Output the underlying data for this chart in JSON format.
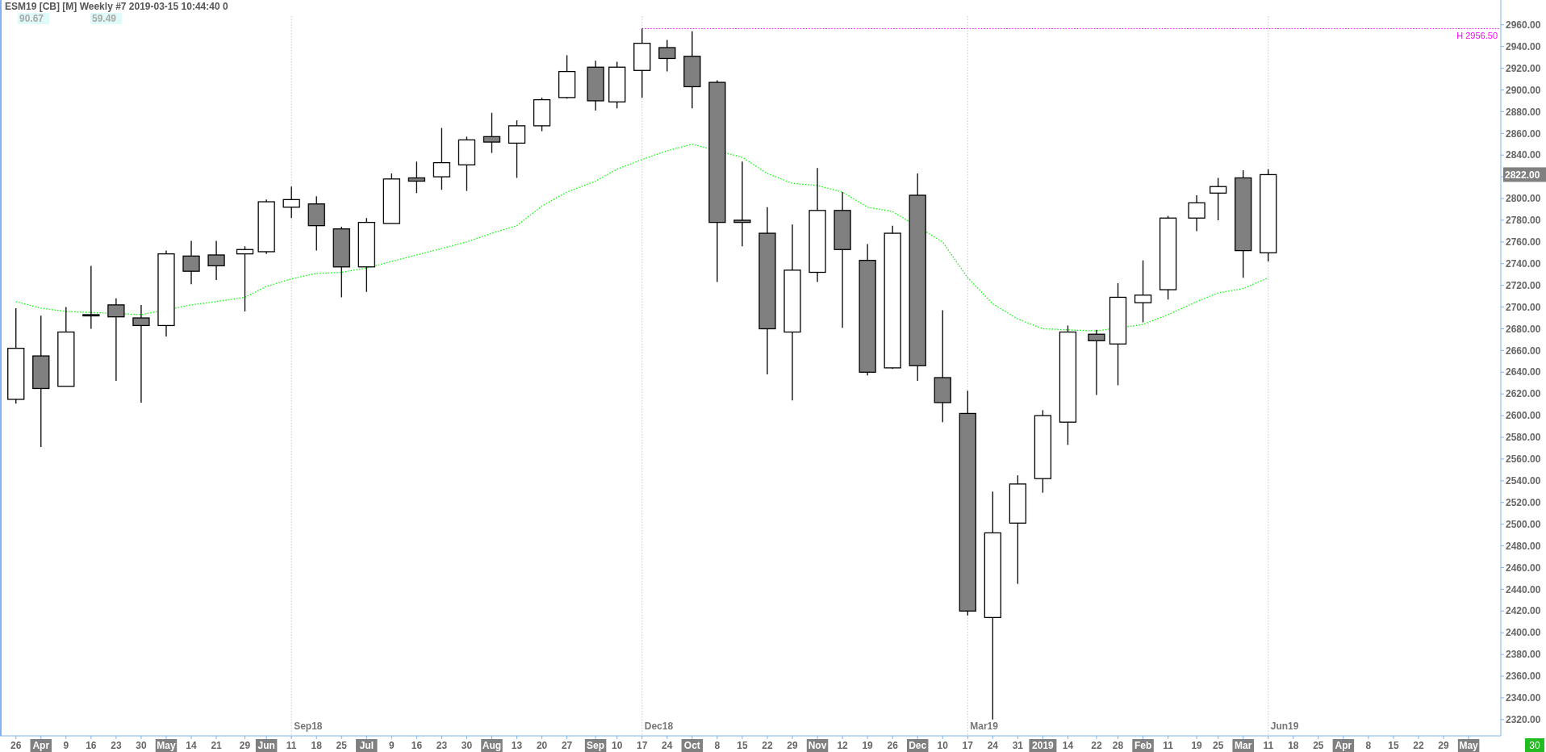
{
  "chart_data": {
    "type": "candlestick",
    "title": "ESM19 [CB] [M]  Weekly  #7 2019-03-15 10:44:40 0",
    "annotations": [
      "90.67",
      "59.49",
      "2822.00",
      "30"
    ],
    "x": [
      "2018-03-26",
      "2018-04-02",
      "2018-04-09",
      "2018-04-16",
      "2018-04-23",
      "2018-04-30",
      "2018-05-07",
      "2018-05-14",
      "2018-05-21",
      "2018-05-29",
      "2018-06-04",
      "2018-06-11",
      "2018-06-18",
      "2018-06-25",
      "2018-07-02",
      "2018-07-09",
      "2018-07-16",
      "2018-07-23",
      "2018-07-30",
      "2018-08-06",
      "2018-08-13",
      "2018-08-20",
      "2018-08-27",
      "2018-09-04",
      "2018-09-10",
      "2018-09-17",
      "2018-09-24",
      "2018-10-01",
      "2018-10-08",
      "2018-10-15",
      "2018-10-22",
      "2018-10-29",
      "2018-11-05",
      "2018-11-12",
      "2018-11-19",
      "2018-11-26",
      "2018-12-03",
      "2018-12-10",
      "2018-12-17",
      "2018-12-24",
      "2018-12-31",
      "2019-01-07",
      "2019-01-14",
      "2019-01-22",
      "2019-01-28",
      "2019-02-04",
      "2019-02-11",
      "2019-02-19",
      "2019-02-25",
      "2019-03-04",
      "2019-03-11"
    ],
    "ohlc": [
      [
        2615,
        2699,
        2611,
        2662
      ],
      [
        2655,
        2692,
        2571,
        2625
      ],
      [
        2627,
        2700,
        2627,
        2677
      ],
      [
        2693,
        2738,
        2680,
        2692
      ],
      [
        2702,
        2708,
        2632,
        2691
      ],
      [
        2690,
        2702,
        2612,
        2683
      ],
      [
        2683,
        2752,
        2673,
        2749
      ],
      [
        2747,
        2761,
        2721,
        2733
      ],
      [
        2748,
        2761,
        2725,
        2738
      ],
      [
        2749,
        2756,
        2696,
        2753
      ],
      [
        2751,
        2799,
        2749,
        2797
      ],
      [
        2792,
        2811,
        2782,
        2799
      ],
      [
        2795,
        2802,
        2752,
        2775
      ],
      [
        2772,
        2774,
        2709,
        2737
      ],
      [
        2737,
        2782,
        2714,
        2778
      ],
      [
        2777,
        2823,
        2777,
        2818
      ],
      [
        2819,
        2834,
        2805,
        2816
      ],
      [
        2820,
        2865,
        2808,
        2833
      ],
      [
        2831,
        2857,
        2807,
        2854
      ],
      [
        2857,
        2879,
        2842,
        2852
      ],
      [
        2851,
        2872,
        2819,
        2867
      ],
      [
        2867,
        2893,
        2862,
        2891
      ],
      [
        2893,
        2932,
        2892,
        2917
      ],
      [
        2921,
        2927,
        2881,
        2890
      ],
      [
        2889,
        2926,
        2883,
        2921
      ],
      [
        2918,
        2956.5,
        2893,
        2943
      ],
      [
        2939,
        2946,
        2917,
        2929
      ],
      [
        2931,
        2954,
        2883,
        2903
      ],
      [
        2907,
        2909,
        2723,
        2778
      ],
      [
        2780,
        2834,
        2756,
        2778
      ],
      [
        2768,
        2792,
        2638,
        2680
      ],
      [
        2677,
        2776,
        2614,
        2734
      ],
      [
        2732,
        2828,
        2723,
        2789
      ],
      [
        2789,
        2806,
        2681,
        2753
      ],
      [
        2743,
        2758,
        2637,
        2640
      ],
      [
        2644,
        2775,
        2643,
        2768
      ],
      [
        2803,
        2823,
        2632,
        2646
      ],
      [
        2635,
        2697,
        2594,
        2612
      ],
      [
        2602,
        2623,
        2416,
        2420
      ],
      [
        2414,
        2530,
        2320,
        2492
      ],
      [
        2501,
        2545,
        2445,
        2537
      ],
      [
        2542,
        2605,
        2529,
        2600
      ],
      [
        2594,
        2683,
        2573,
        2677
      ],
      [
        2675,
        2679,
        2619,
        2669
      ],
      [
        2666,
        2722,
        2628,
        2709
      ],
      [
        2704,
        2743,
        2686,
        2711
      ],
      [
        2716,
        2784,
        2707,
        2782
      ],
      [
        2782,
        2803,
        2770,
        2796
      ],
      [
        2805,
        2819,
        2780,
        2811
      ],
      [
        2819,
        2826,
        2727,
        2752
      ],
      [
        2750,
        2827,
        2742,
        2822
      ]
    ],
    "colors": [
      "#ffffff",
      "#808080",
      "#ffffff",
      "#808080",
      "#808080",
      "#808080",
      "#ffffff",
      "#808080",
      "#808080",
      "#ffffff",
      "#ffffff",
      "#ffffff",
      "#808080",
      "#808080",
      "#ffffff",
      "#ffffff",
      "#808080",
      "#ffffff",
      "#ffffff",
      "#808080",
      "#ffffff",
      "#ffffff",
      "#ffffff",
      "#808080",
      "#ffffff",
      "#ffffff",
      "#808080",
      "#808080",
      "#808080",
      "#808080",
      "#808080",
      "#ffffff",
      "#ffffff",
      "#808080",
      "#808080",
      "#ffffff",
      "#808080",
      "#808080",
      "#808080",
      "#ffffff",
      "#ffffff",
      "#ffffff",
      "#ffffff",
      "#808080",
      "#ffffff",
      "#ffffff",
      "#ffffff",
      "#ffffff",
      "#ffffff",
      "#808080",
      "#ffffff"
    ],
    "series": [
      {
        "type": "line",
        "color": "#00ff00",
        "values": [
          2705,
          2699,
          2696,
          2695,
          null,
          2693,
          null,
          2702,
          2705,
          2709,
          2719,
          2726,
          2731,
          2732,
          2736,
          2742,
          2748,
          2754,
          2760,
          2768,
          2775,
          2793,
          2806,
          2816,
          2827,
          2836,
          2844,
          2850,
          null,
          2838,
          2823,
          2814,
          2812,
          2806,
          2792,
          2788,
          null,
          2760,
          2727,
          2703,
          2689,
          2680,
          2679,
          2678,
          null,
          2684,
          2693,
          2705,
          2713,
          2717,
          2727
        ]
      }
    ],
    "line_style": "dotted",
    "ref_lines": [
      {
        "axis": "y",
        "value": 2956.5,
        "label": "H 2956.50",
        "color": "#ff00ff",
        "line_style": "dotted"
      },
      {
        "axis": "x",
        "value": "2018-06-11",
        "label": "Sep18",
        "color": "#c8c8c8",
        "line_style": "dotted"
      },
      {
        "axis": "x",
        "value": "2018-09-17",
        "label": "Dec18",
        "color": "#c8c8c8",
        "line_style": "dotted"
      },
      {
        "axis": "x",
        "value": "2018-12-17",
        "label": "Mar19",
        "color": "#c8c8c8",
        "line_style": "dotted"
      },
      {
        "axis": "x",
        "value": "2019-03-11",
        "label": "Jun19",
        "color": "#c8c8c8",
        "line_style": "dotted"
      }
    ],
    "xlim": [
      "2018-03-22",
      "2019-05-15"
    ],
    "xticks": [
      {
        "value": "2018-03-26",
        "label": "26"
      },
      {
        "value": "2018-04-02",
        "label": "Apr"
      },
      {
        "value": "2018-04-09",
        "label": "9"
      },
      {
        "value": "2018-04-16",
        "label": "16"
      },
      {
        "value": "2018-04-23",
        "label": "23"
      },
      {
        "value": "2018-04-30",
        "label": "30"
      },
      {
        "value": "2018-05-07",
        "label": "May"
      },
      {
        "value": "2018-05-14",
        "label": "14"
      },
      {
        "value": "2018-05-21",
        "label": "21"
      },
      {
        "value": "2018-05-29",
        "label": "29"
      },
      {
        "value": "2018-06-04",
        "label": "Jun"
      },
      {
        "value": "2018-06-11",
        "label": "11"
      },
      {
        "value": "2018-06-18",
        "label": "18"
      },
      {
        "value": "2018-06-25",
        "label": "25"
      },
      {
        "value": "2018-07-02",
        "label": "Jul"
      },
      {
        "value": "2018-07-09",
        "label": "9"
      },
      {
        "value": "2018-07-16",
        "label": "16"
      },
      {
        "value": "2018-07-23",
        "label": "23"
      },
      {
        "value": "2018-07-30",
        "label": "30"
      },
      {
        "value": "2018-08-06",
        "label": "Aug"
      },
      {
        "value": "2018-08-13",
        "label": "13"
      },
      {
        "value": "2018-08-20",
        "label": "20"
      },
      {
        "value": "2018-08-27",
        "label": "27"
      },
      {
        "value": "2018-09-04",
        "label": "Sep"
      },
      {
        "value": "2018-09-10",
        "label": "10"
      },
      {
        "value": "2018-09-17",
        "label": "17"
      },
      {
        "value": "2018-09-24",
        "label": "24"
      },
      {
        "value": "2018-10-01",
        "label": "Oct"
      },
      {
        "value": "2018-10-08",
        "label": "8"
      },
      {
        "value": "2018-10-15",
        "label": "15"
      },
      {
        "value": "2018-10-22",
        "label": "22"
      },
      {
        "value": "2018-10-29",
        "label": "29"
      },
      {
        "value": "2018-11-05",
        "label": "Nov"
      },
      {
        "value": "2018-11-12",
        "label": "12"
      },
      {
        "value": "2018-11-19",
        "label": "19"
      },
      {
        "value": "2018-11-26",
        "label": "26"
      },
      {
        "value": "2018-12-03",
        "label": "Dec"
      },
      {
        "value": "2018-12-10",
        "label": "10"
      },
      {
        "value": "2018-12-17",
        "label": "17"
      },
      {
        "value": "2018-12-24",
        "label": "24"
      },
      {
        "value": "2018-12-31",
        "label": "31"
      },
      {
        "value": "2019-01-07",
        "label": "2019"
      },
      {
        "value": "2019-01-14",
        "label": "14"
      },
      {
        "value": "2019-01-22",
        "label": "22"
      },
      {
        "value": "2019-01-28",
        "label": "28"
      },
      {
        "value": "2019-02-04",
        "label": "Feb"
      },
      {
        "value": "2019-02-11",
        "label": "11"
      },
      {
        "value": "2019-02-19",
        "label": "19"
      },
      {
        "value": "2019-02-25",
        "label": "25"
      },
      {
        "value": "2019-03-04",
        "label": "Mar"
      },
      {
        "value": "2019-03-11",
        "label": "11"
      },
      {
        "value": "2019-03-18",
        "label": "18"
      },
      {
        "value": "2019-03-25",
        "label": "25"
      },
      {
        "value": "2019-04-01",
        "label": "Apr"
      },
      {
        "value": "2019-04-08",
        "label": "8"
      },
      {
        "value": "2019-04-15",
        "label": "15"
      },
      {
        "value": "2019-04-22",
        "label": "22"
      },
      {
        "value": "2019-04-29",
        "label": "29"
      },
      {
        "value": "2019-05-06",
        "label": "May"
      }
    ],
    "ylim": [
      2305,
      2968
    ],
    "yticks": [
      {
        "value": 2320,
        "label": "2320.00"
      },
      {
        "value": 2340,
        "label": "2340.00"
      },
      {
        "value": 2360,
        "label": "2360.00"
      },
      {
        "value": 2380,
        "label": "2380.00"
      },
      {
        "value": 2400,
        "label": "2400.00"
      },
      {
        "value": 2420,
        "label": "2420.00"
      },
      {
        "value": 2440,
        "label": "2440.00"
      },
      {
        "value": 2460,
        "label": "2460.00"
      },
      {
        "value": 2480,
        "label": "2480.00"
      },
      {
        "value": 2500,
        "label": "2500.00"
      },
      {
        "value": 2520,
        "label": "2520.00"
      },
      {
        "value": 2540,
        "label": "2540.00"
      },
      {
        "value": 2560,
        "label": "2560.00"
      },
      {
        "value": 2580,
        "label": "2580.00"
      },
      {
        "value": 2600,
        "label": "2600.00"
      },
      {
        "value": 2620,
        "label": "2620.00"
      },
      {
        "value": 2640,
        "label": "2640.00"
      },
      {
        "value": 2660,
        "label": "2660.00"
      },
      {
        "value": 2680,
        "label": "2680.00"
      },
      {
        "value": 2700,
        "label": "2700.00"
      },
      {
        "value": 2720,
        "label": "2720.00"
      },
      {
        "value": 2740,
        "label": "2740.00"
      },
      {
        "value": 2760,
        "label": "2760.00"
      },
      {
        "value": 2780,
        "label": "2780.00"
      },
      {
        "value": 2800,
        "label": "2800.00"
      },
      {
        "value": 2820,
        "label": null
      },
      {
        "value": 2840,
        "label": "2840.00"
      },
      {
        "value": 2860,
        "label": "2860.00"
      },
      {
        "value": 2880,
        "label": "2880.00"
      },
      {
        "value": 2900,
        "label": "2900.00"
      },
      {
        "value": 2920,
        "label": "2920.00"
      },
      {
        "value": 2940,
        "label": "2940.00"
      },
      {
        "value": 2960,
        "label": "2960.00"
      }
    ]
  }
}
